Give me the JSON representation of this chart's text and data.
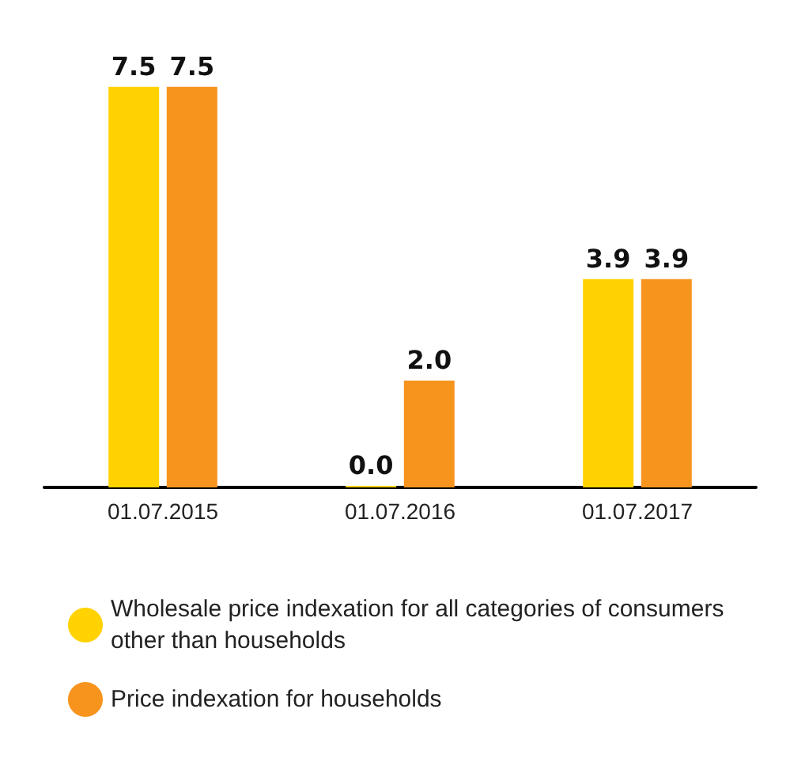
{
  "chart_data": {
    "type": "bar",
    "categories": [
      "01.07.2015",
      "01.07.2016",
      "01.07.2017"
    ],
    "series": [
      {
        "name": "Wholesale price indexation for all categories of consumers other than households",
        "color": "#ffd200",
        "values": [
          7.5,
          0,
          3.9
        ],
        "value_labels": [
          "7.5",
          "0.0",
          "3.9"
        ]
      },
      {
        "name": "Price indexation for households",
        "color": "#f7941d",
        "values": [
          7.5,
          2.0,
          3.9
        ],
        "value_labels": [
          "7.5",
          "2.0",
          "3.9"
        ]
      }
    ],
    "legend": "bottom",
    "grid": false
  }
}
